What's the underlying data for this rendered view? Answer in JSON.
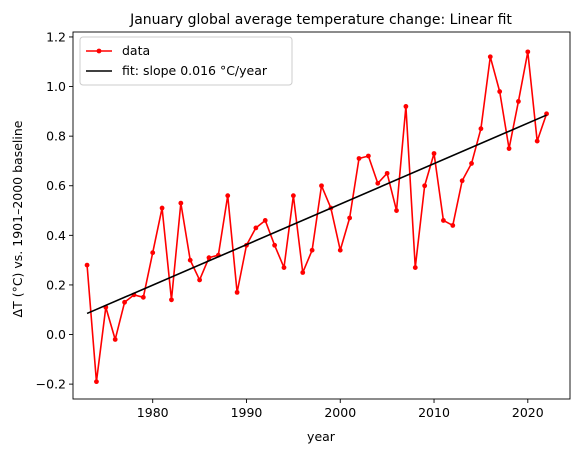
{
  "chart_data": {
    "type": "line",
    "title": "January global average temperature change: Linear fit",
    "xlabel": "year",
    "ylabel": "ΔT (°C) vs. 1901–2000 baseline",
    "xlim": [
      1971.5,
      2024.5
    ],
    "ylim": [
      -0.26,
      1.22
    ],
    "xticks": [
      1980,
      1990,
      2000,
      2010,
      2020
    ],
    "yticks": [
      -0.2,
      0.0,
      0.2,
      0.4,
      0.6,
      0.8,
      1.0,
      1.2
    ],
    "ytick_labels": [
      "−0.2",
      "0.0",
      "0.2",
      "0.4",
      "0.6",
      "0.8",
      "1.0",
      "1.2"
    ],
    "grid": false,
    "legend_position": "upper-left",
    "series": [
      {
        "name": "data",
        "kind": "line-markers",
        "color": "#ff0000",
        "x": [
          1973,
          1974,
          1975,
          1976,
          1977,
          1978,
          1979,
          1980,
          1981,
          1982,
          1983,
          1984,
          1985,
          1986,
          1987,
          1988,
          1989,
          1990,
          1991,
          1992,
          1993,
          1994,
          1995,
          1996,
          1997,
          1998,
          1999,
          2000,
          2001,
          2002,
          2003,
          2004,
          2005,
          2006,
          2007,
          2008,
          2009,
          2010,
          2011,
          2012,
          2013,
          2014,
          2015,
          2016,
          2017,
          2018,
          2019,
          2020,
          2021,
          2022
        ],
        "y": [
          0.28,
          -0.19,
          0.11,
          -0.02,
          0.13,
          0.16,
          0.15,
          0.33,
          0.51,
          0.14,
          0.53,
          0.3,
          0.22,
          0.31,
          0.32,
          0.56,
          0.17,
          0.36,
          0.43,
          0.46,
          0.36,
          0.27,
          0.56,
          0.25,
          0.34,
          0.6,
          0.51,
          0.34,
          0.47,
          0.71,
          0.72,
          0.61,
          0.65,
          0.5,
          0.92,
          0.27,
          0.6,
          0.73,
          0.46,
          0.44,
          0.62,
          0.69,
          0.83,
          1.12,
          0.98,
          0.75,
          0.94,
          1.14,
          0.78,
          0.89
        ]
      },
      {
        "name": "fit: slope 0.016 °C/year",
        "kind": "line",
        "color": "#000000",
        "x": [
          1973,
          2022
        ],
        "y": [
          0.085,
          0.885
        ]
      }
    ]
  }
}
